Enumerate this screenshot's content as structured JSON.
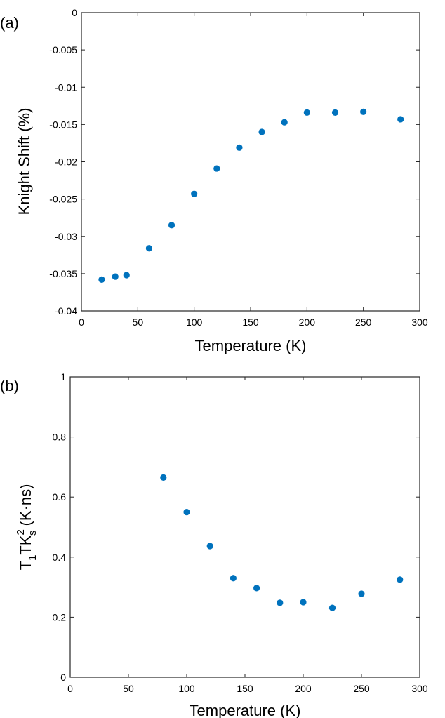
{
  "chart_data": [
    {
      "type": "scatter",
      "panel_label": "(a)",
      "xlabel": "Temperature (K)",
      "ylabel": "Knight Shift (%)",
      "xlim": [
        0,
        300
      ],
      "ylim": [
        -0.04,
        0
      ],
      "xticks": [
        "0",
        "50",
        "100",
        "150",
        "200",
        "250",
        "300"
      ],
      "yticks": [
        "-0.04",
        "-0.035",
        "-0.03",
        "-0.025",
        "-0.02",
        "-0.015",
        "-0.01",
        "-0.005",
        "0"
      ],
      "marker_color": "#0072BD",
      "grid": false,
      "series": [
        {
          "x": [
            18,
            30,
            40,
            60,
            80,
            100,
            120,
            140,
            160,
            180,
            200,
            225,
            250,
            283
          ],
          "y": [
            -0.0358,
            -0.0354,
            -0.0352,
            -0.0316,
            -0.0285,
            -0.0243,
            -0.0209,
            -0.0181,
            -0.016,
            -0.0147,
            -0.0134,
            -0.0134,
            -0.0133,
            -0.0143
          ]
        }
      ]
    },
    {
      "type": "scatter",
      "panel_label": "(b)",
      "xlabel": "Temperature (K)",
      "ylabel": "T1TKs2 (K·ns)",
      "ylabel_parts": {
        "t": "T",
        "sub1": "1",
        "tk": "TK",
        "sup": "2",
        "sub2": "s",
        "unit": " (K·ns)"
      },
      "xlim": [
        0,
        300
      ],
      "ylim": [
        0,
        1
      ],
      "xticks": [
        "0",
        "50",
        "100",
        "150",
        "200",
        "250",
        "300"
      ],
      "yticks": [
        "0",
        "0.2",
        "0.4",
        "0.6",
        "0.8",
        "1"
      ],
      "marker_color": "#0072BD",
      "grid": false,
      "series": [
        {
          "x": [
            80,
            100,
            120,
            140,
            160,
            180,
            200,
            225,
            250,
            283
          ],
          "y": [
            0.665,
            0.55,
            0.437,
            0.33,
            0.297,
            0.248,
            0.25,
            0.231,
            0.278,
            0.325
          ]
        }
      ]
    }
  ]
}
